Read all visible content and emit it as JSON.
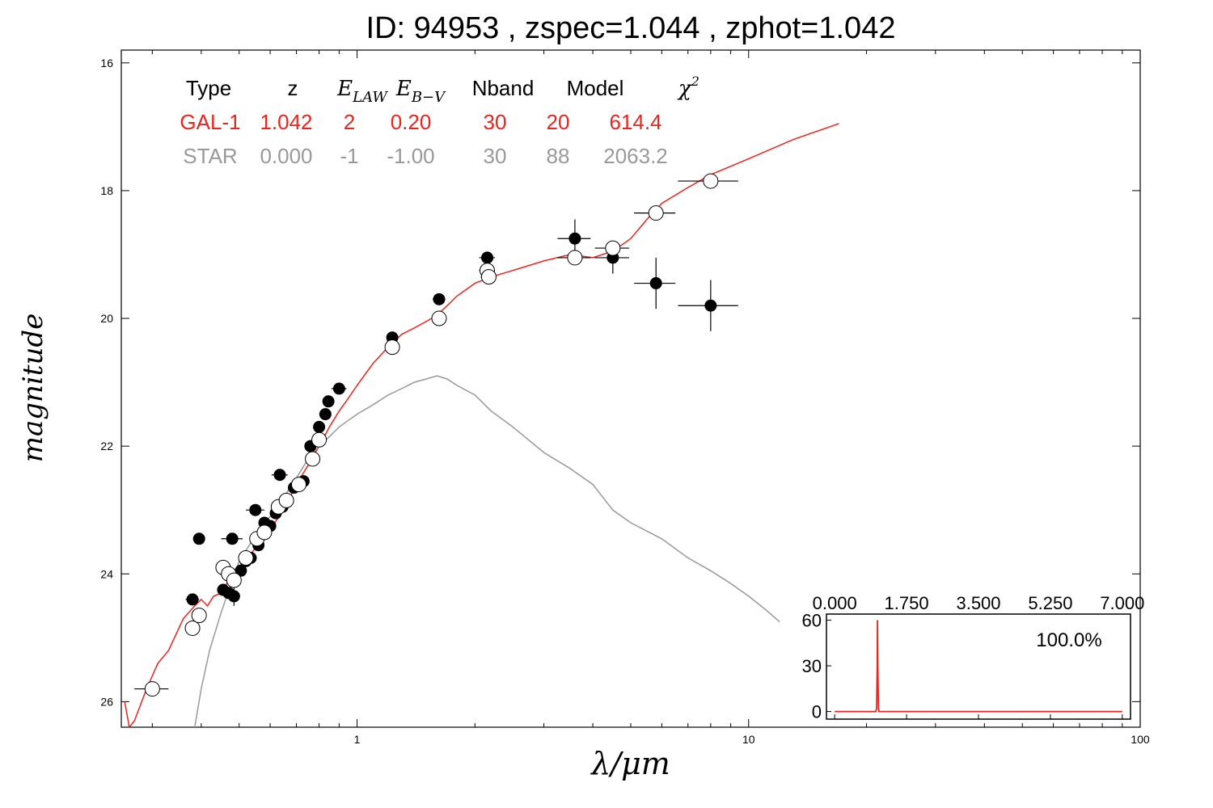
{
  "title": "ID:  94953 , zspec=1.044 , zphot=1.042",
  "chart_data": [
    {
      "type": "scatter",
      "xlabel": "λ/μm",
      "ylabel": "magnitude",
      "xscale": "log",
      "xlim": [
        0.25,
        100
      ],
      "ylim": [
        26.4,
        15.8
      ],
      "y_inverted": true,
      "x_ticks": [
        1,
        10,
        100
      ],
      "x_tick_labels": [
        "1",
        "10",
        "100"
      ],
      "y_ticks": [
        16,
        18,
        20,
        22,
        24,
        26
      ],
      "y_tick_labels": [
        "16",
        "18",
        "20",
        "22",
        "24",
        "26"
      ],
      "grid": false,
      "fit_table": {
        "headers": [
          "Type",
          "z",
          "E_LAW",
          "E_B-V",
          "Nband",
          "Model",
          "χ²"
        ],
        "header_display": [
          {
            "text": "Type",
            "math": false
          },
          {
            "text": "z",
            "math": false
          },
          {
            "text": "E",
            "sub": "LAW",
            "math": true
          },
          {
            "text": "E",
            "sub": "B−V",
            "math": true
          },
          {
            "text": "Nband",
            "math": false
          },
          {
            "text": "Model",
            "math": false
          },
          {
            "text": "χ",
            "sup": "2",
            "math": true
          }
        ],
        "rows": [
          {
            "values": [
              "GAL-1",
              "1.042",
              "2",
              "0.20",
              "30",
              "20",
              "614.4"
            ],
            "color": "#e8261f"
          },
          {
            "values": [
              "STAR",
              "0.000",
              "-1",
              "-1.00",
              "30",
              "88",
              "2063.2"
            ],
            "color": "#999999"
          }
        ]
      },
      "series": [
        {
          "name": "GAL-1",
          "kind": "model_line",
          "color": "#e8261f",
          "x": [
            0.255,
            0.262,
            0.27,
            0.29,
            0.31,
            0.33,
            0.36,
            0.385,
            0.4,
            0.415,
            0.43,
            0.45,
            0.47,
            0.5,
            0.55,
            0.6,
            0.65,
            0.7,
            0.75,
            0.8,
            0.85,
            0.9,
            0.95,
            1.0,
            1.1,
            1.2,
            1.3,
            1.4,
            1.5,
            1.6,
            1.7,
            1.8,
            2.0,
            2.2,
            2.5,
            3.0,
            3.5,
            4.0,
            4.5,
            5.0,
            5.5,
            6.0,
            7.0,
            8.0,
            10.0,
            13.0,
            17.0
          ],
          "y": [
            26.0,
            26.4,
            26.3,
            25.8,
            25.4,
            25.2,
            24.7,
            24.5,
            24.4,
            24.5,
            24.35,
            24.3,
            24.1,
            23.9,
            23.6,
            23.3,
            23.0,
            22.6,
            22.3,
            22.0,
            21.7,
            21.45,
            21.25,
            21.05,
            20.7,
            20.45,
            20.25,
            20.15,
            20.05,
            19.95,
            19.8,
            19.65,
            19.45,
            19.35,
            19.25,
            19.1,
            19.0,
            19.05,
            18.95,
            18.75,
            18.45,
            18.2,
            17.95,
            17.75,
            17.5,
            17.2,
            16.95
          ]
        },
        {
          "name": "STAR",
          "kind": "model_line",
          "color": "#999999",
          "x": [
            0.385,
            0.4,
            0.42,
            0.45,
            0.48,
            0.5,
            0.55,
            0.6,
            0.65,
            0.7,
            0.75,
            0.8,
            0.85,
            0.9,
            1.0,
            1.1,
            1.2,
            1.3,
            1.4,
            1.5,
            1.6,
            1.7,
            1.8,
            2.0,
            2.2,
            2.5,
            3.0,
            3.5,
            4.0,
            4.5,
            5.0,
            6.0,
            7.0,
            8.0,
            9.0,
            10.0,
            11.0,
            12.0
          ],
          "y": [
            26.4,
            25.8,
            25.2,
            24.6,
            24.1,
            23.8,
            23.4,
            23.1,
            22.8,
            22.5,
            22.2,
            22.0,
            21.85,
            21.7,
            21.5,
            21.35,
            21.2,
            21.1,
            21.0,
            20.95,
            20.9,
            20.95,
            21.05,
            21.2,
            21.45,
            21.7,
            22.1,
            22.35,
            22.6,
            23.0,
            23.2,
            23.45,
            23.75,
            23.95,
            24.15,
            24.35,
            24.55,
            24.75
          ]
        },
        {
          "name": "observed",
          "kind": "filled_points",
          "color": "#000000",
          "points": [
            {
              "x": 0.38,
              "y": 24.4,
              "xerr": 0.015,
              "yerr": 0
            },
            {
              "x": 0.395,
              "y": 23.45,
              "xerr": 0.012,
              "yerr": 0
            },
            {
              "x": 0.455,
              "y": 24.25,
              "xerr": 0.01,
              "yerr": 0
            },
            {
              "x": 0.47,
              "y": 24.3,
              "xerr": 0.01,
              "yerr": 0
            },
            {
              "x": 0.48,
              "y": 23.45,
              "xerr": 0.03,
              "yerr": 0
            },
            {
              "x": 0.485,
              "y": 24.35,
              "xerr": 0.01,
              "yerr": 0.15
            },
            {
              "x": 0.505,
              "y": 23.95,
              "xerr": 0.01,
              "yerr": 0
            },
            {
              "x": 0.52,
              "y": 23.8,
              "xerr": 0.01,
              "yerr": 0
            },
            {
              "x": 0.535,
              "y": 23.75,
              "xerr": 0.01,
              "yerr": 0
            },
            {
              "x": 0.55,
              "y": 23.0,
              "xerr": 0.03,
              "yerr": 0
            },
            {
              "x": 0.56,
              "y": 23.55,
              "xerr": 0.01,
              "yerr": 0
            },
            {
              "x": 0.58,
              "y": 23.2,
              "xerr": 0.01,
              "yerr": 0
            },
            {
              "x": 0.6,
              "y": 23.25,
              "xerr": 0.01,
              "yerr": 0
            },
            {
              "x": 0.62,
              "y": 23.05,
              "xerr": 0.01,
              "yerr": 0
            },
            {
              "x": 0.635,
              "y": 22.45,
              "xerr": 0.03,
              "yerr": 0
            },
            {
              "x": 0.645,
              "y": 22.95,
              "xerr": 0.01,
              "yerr": 0
            },
            {
              "x": 0.665,
              "y": 22.85,
              "xerr": 0.01,
              "yerr": 0
            },
            {
              "x": 0.69,
              "y": 22.65,
              "xerr": 0.01,
              "yerr": 0
            },
            {
              "x": 0.71,
              "y": 22.6,
              "xerr": 0.01,
              "yerr": 0
            },
            {
              "x": 0.73,
              "y": 22.55,
              "xerr": 0.01,
              "yerr": 0
            },
            {
              "x": 0.76,
              "y": 22.0,
              "xerr": 0.01,
              "yerr": 0
            },
            {
              "x": 0.8,
              "y": 21.7,
              "xerr": 0.01,
              "yerr": 0
            },
            {
              "x": 0.83,
              "y": 21.5,
              "xerr": 0.02,
              "yerr": 0
            },
            {
              "x": 0.845,
              "y": 21.3,
              "xerr": 0.02,
              "yerr": 0
            },
            {
              "x": 0.9,
              "y": 21.1,
              "xerr": 0.04,
              "yerr": 0
            },
            {
              "x": 1.23,
              "y": 20.3,
              "xerr": 0.04,
              "yerr": 0
            },
            {
              "x": 1.62,
              "y": 19.7,
              "xerr": 0.06,
              "yerr": 0
            },
            {
              "x": 2.15,
              "y": 19.05,
              "xerr": 0.1,
              "yerr": 0
            },
            {
              "x": 3.6,
              "y": 18.75,
              "xerr": 0.35,
              "yerr": 0.3
            },
            {
              "x": 4.5,
              "y": 19.05,
              "xerr": 0.45,
              "yerr": 0.25
            },
            {
              "x": 5.8,
              "y": 19.45,
              "xerr": 0.7,
              "yerr": 0.4
            },
            {
              "x": 8.0,
              "y": 19.8,
              "xerr": 1.4,
              "yerr": 0.4
            }
          ]
        },
        {
          "name": "model",
          "kind": "open_points",
          "color": "#000000",
          "points": [
            {
              "x": 0.3,
              "y": 25.8,
              "xerr": 0.03
            },
            {
              "x": 0.38,
              "y": 24.85,
              "xerr": 0.01
            },
            {
              "x": 0.395,
              "y": 24.65,
              "xerr": 0.01
            },
            {
              "x": 0.455,
              "y": 23.9,
              "xerr": 0.01
            },
            {
              "x": 0.47,
              "y": 24.0,
              "xerr": 0.01
            },
            {
              "x": 0.485,
              "y": 24.1,
              "xerr": 0.01
            },
            {
              "x": 0.52,
              "y": 23.75,
              "xerr": 0.01
            },
            {
              "x": 0.555,
              "y": 23.45,
              "xerr": 0.01
            },
            {
              "x": 0.58,
              "y": 23.35,
              "xerr": 0.01
            },
            {
              "x": 0.63,
              "y": 22.95,
              "xerr": 0.01
            },
            {
              "x": 0.66,
              "y": 22.85,
              "xerr": 0.01
            },
            {
              "x": 0.71,
              "y": 22.6,
              "xerr": 0.01
            },
            {
              "x": 0.77,
              "y": 22.2,
              "xerr": 0.01
            },
            {
              "x": 0.8,
              "y": 21.9,
              "xerr": 0.01
            },
            {
              "x": 1.23,
              "y": 20.45,
              "xerr": 0.04
            },
            {
              "x": 1.62,
              "y": 20.0,
              "xerr": 0.06
            },
            {
              "x": 2.15,
              "y": 19.25,
              "xerr": 0.1
            },
            {
              "x": 2.17,
              "y": 19.35,
              "xerr": 0.1
            },
            {
              "x": 3.6,
              "y": 19.05,
              "xerr": 0.35
            },
            {
              "x": 4.5,
              "y": 18.9,
              "xerr": 0.45
            },
            {
              "x": 5.8,
              "y": 18.35,
              "xerr": 0.7
            },
            {
              "x": 8.0,
              "y": 17.85,
              "xerr": 1.4
            }
          ]
        }
      ]
    },
    {
      "type": "line",
      "inset": true,
      "xlim": [
        -0.2,
        7.2
      ],
      "ylim": [
        -5,
        64
      ],
      "x_ticks": [
        0,
        1.75,
        3.5,
        5.25,
        7
      ],
      "x_tick_labels": [
        "0.000",
        "1.750",
        "3.500",
        "5.250",
        "7.000"
      ],
      "y_ticks": [
        0,
        30,
        60
      ],
      "y_tick_labels": [
        "0",
        "30",
        "60"
      ],
      "annotation": "100.0%",
      "series": [
        {
          "color": "#e8261f",
          "x": [
            0.0,
            1.0,
            1.02,
            1.035,
            1.042,
            1.05,
            1.065,
            1.08,
            7.0
          ],
          "y": [
            0,
            0,
            2,
            30,
            60,
            30,
            2,
            0,
            0
          ]
        }
      ]
    }
  ]
}
